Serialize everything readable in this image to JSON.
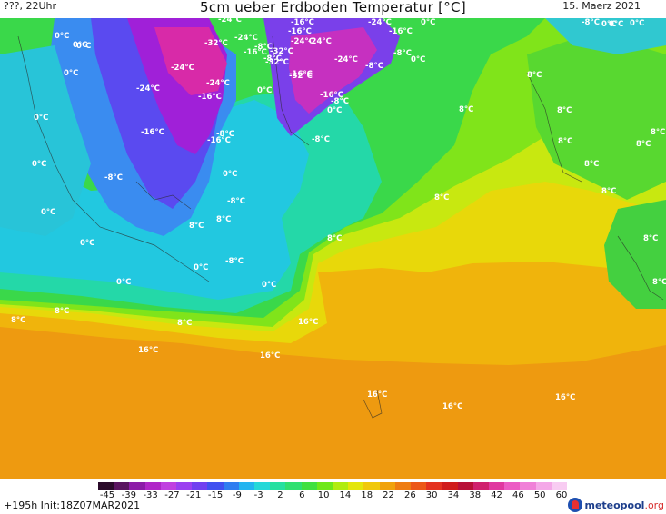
{
  "header": {
    "left": "???, 22Uhr",
    "title": "5cm ueber Erdboden Temperatur [°C]",
    "date": "15. Maerz 2021"
  },
  "footer": {
    "run_info": "+195h  Init:18Z07MAR2021",
    "brand_main": "meteopool",
    "brand_tld": ".org"
  },
  "legend": {
    "ticks": [
      "-45",
      "-39",
      "-33",
      "-27",
      "-21",
      "-15",
      "-9",
      "-3",
      "2",
      "6",
      "10",
      "14",
      "18",
      "22",
      "26",
      "30",
      "34",
      "38",
      "42",
      "46",
      "50",
      "60"
    ],
    "colors": [
      "#2a0a2a",
      "#5a1460",
      "#8c1ca8",
      "#b026c8",
      "#c040e0",
      "#9a40f0",
      "#7040f0",
      "#4050f0",
      "#2f7df0",
      "#23b4f0",
      "#25d8d8",
      "#25e0a0",
      "#2fe070",
      "#40e040",
      "#6ee81a",
      "#b0ec10",
      "#e4e60a",
      "#f0c80a",
      "#f0a20c",
      "#ee7c12",
      "#ec5818",
      "#e43220",
      "#d01c1c",
      "#b81038",
      "#d0206e",
      "#e038a0",
      "#ec5cc4",
      "#f080d8",
      "#f4a8e8",
      "#f8ccf2"
    ]
  },
  "map_labels": [
    "-24°C",
    "-16°C",
    "-24°C",
    "-16°C",
    "-24°C",
    "-16°C",
    "-32°C",
    "-24°C",
    "-32°C",
    "-8°C",
    "-24°C",
    "-24°C",
    "-32°C",
    "-24°C",
    "-16°C",
    "-8°C",
    "-24°C",
    "-8°C",
    "-16°C",
    "-8°C",
    "-32°C",
    "-16°C",
    "-24°C",
    "-16°C",
    "-8°C",
    "-16°C",
    "-8°C",
    "-8°C",
    "-16°C",
    "-8°C",
    "-8°C",
    "-8°C",
    "-8°C",
    "0°C",
    "0°C",
    "0°C",
    "0°C",
    "0°C",
    "0°C",
    "0°C",
    "0°C",
    "0°C",
    "0°C",
    "0°C",
    "0°C",
    "0°C",
    "0°C",
    "0°C",
    "0°C",
    "0°C",
    "0°C",
    "0°C",
    "8°C",
    "8°C",
    "8°C",
    "8°C",
    "8°C",
    "8°C",
    "8°C",
    "8°C",
    "8°C",
    "8°C",
    "8°C",
    "8°C",
    "8°C",
    "8°C",
    "8°C",
    "8°C",
    "8°C",
    "16°C",
    "16°C",
    "16°C",
    "16°C",
    "16°C",
    "16°C",
    "16°C"
  ]
}
